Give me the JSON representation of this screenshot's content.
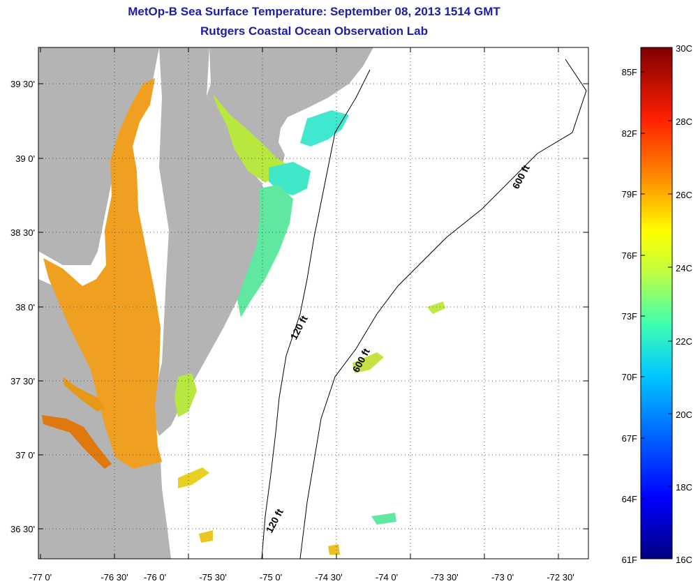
{
  "header": {
    "title": "MetOp-B Sea Surface Temperature:  September 08, 2013 1514 GMT",
    "subtitle": "Rutgers Coastal Ocean Observation Lab"
  },
  "map": {
    "lon_labels": [
      "-77 0'",
      "-76 30'",
      "-76 0'",
      "-75 30'",
      "-75 0'",
      "-74 30'",
      "-74 0'",
      "-73 30'",
      "-73 0'",
      "-72 30'"
    ],
    "lat_labels": [
      "39 30'",
      "39 0'",
      "38 30'",
      "38 0'",
      "37 30'",
      "37 0'",
      "36 30'"
    ],
    "contour_labels": [
      "600 ft",
      "120 ft",
      "600 ft",
      "120 ft"
    ],
    "land_color": "#b4b4b4",
    "grid": "dotted"
  },
  "colorbar": {
    "celsius_labels": [
      "30C",
      "28C",
      "26C",
      "24C",
      "22C",
      "20C",
      "18C",
      "16C"
    ],
    "fahrenheit_labels": [
      "85F",
      "82F",
      "79F",
      "76F",
      "73F",
      "70F",
      "67F",
      "64F",
      "61F"
    ],
    "colors": [
      "#000080",
      "#0000ff",
      "#0080ff",
      "#00ffff",
      "#80ff80",
      "#ffff00",
      "#ff8000",
      "#ff0000",
      "#800000"
    ]
  }
}
